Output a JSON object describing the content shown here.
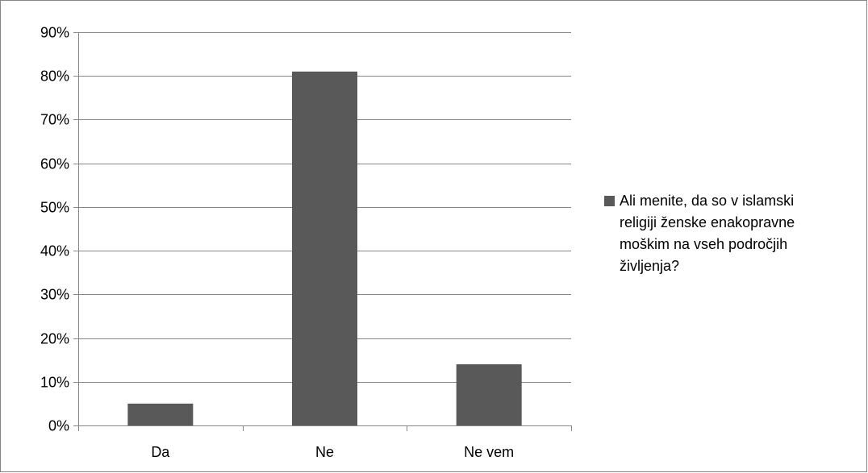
{
  "chart_data": {
    "type": "bar",
    "categories": [
      "Da",
      "Ne",
      "Ne vem"
    ],
    "series": [
      {
        "name": "Ali menite, da so v islamski\nreligiji ženske enakopravne\nmoškim na vseh področjih\nživljenja?",
        "values": [
          5,
          81,
          14
        ]
      }
    ],
    "title": "",
    "xlabel": "",
    "ylabel": "",
    "ylim": [
      0,
      90
    ],
    "yticks": [
      "0%",
      "10%",
      "20%",
      "30%",
      "40%",
      "50%",
      "60%",
      "70%",
      "80%",
      "90%"
    ],
    "grid": true,
    "legend_position": "right",
    "bar_color": "#595959",
    "grid_color": "#868686"
  }
}
